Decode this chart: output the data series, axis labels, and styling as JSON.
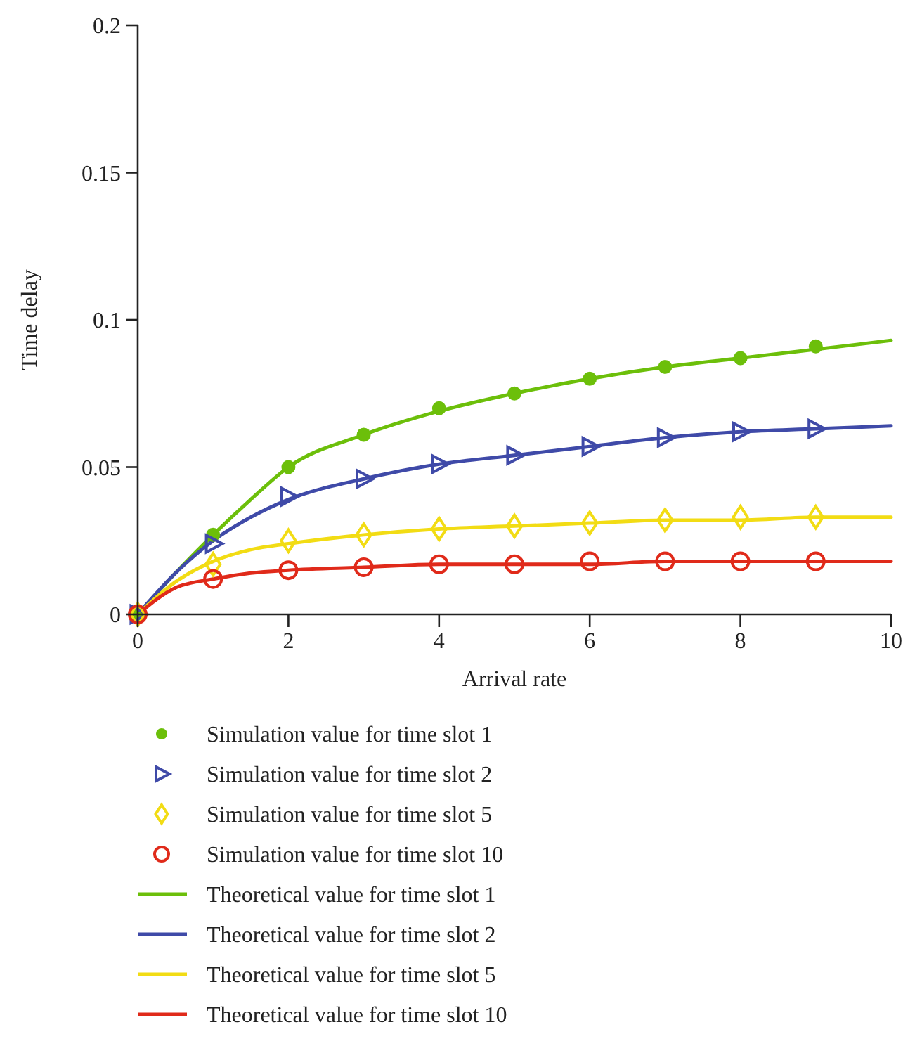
{
  "chart_data": {
    "type": "line",
    "xlabel": "Arrival rate",
    "ylabel": "Time delay",
    "xlim": [
      0,
      10
    ],
    "ylim": [
      0,
      0.2
    ],
    "xticks": [
      0,
      2,
      4,
      6,
      8,
      10
    ],
    "yticks": [
      0,
      0.05,
      0.1,
      0.15,
      0.2
    ],
    "grid": false,
    "legend": "bottom",
    "series": [
      {
        "name": "Simulation value for time slot 1",
        "type": "scatter",
        "marker": "circle",
        "color": "#6cbf0a",
        "x": [
          0,
          1,
          2,
          3,
          4,
          5,
          6,
          7,
          8,
          9
        ],
        "values": [
          0,
          0.027,
          0.05,
          0.061,
          0.07,
          0.075,
          0.08,
          0.084,
          0.087,
          0.091
        ]
      },
      {
        "name": "Simulation value for time slot 2",
        "type": "scatter",
        "marker": "triangle",
        "color": "#3f4aa8",
        "x": [
          0,
          1,
          2,
          3,
          4,
          5,
          6,
          7,
          8,
          9
        ],
        "values": [
          0,
          0.024,
          0.04,
          0.046,
          0.051,
          0.054,
          0.057,
          0.06,
          0.062,
          0.063
        ]
      },
      {
        "name": "Simulation value for time slot 5",
        "type": "scatter",
        "marker": "diamond",
        "color": "#f2dc14",
        "x": [
          0,
          1,
          2,
          3,
          4,
          5,
          6,
          7,
          8,
          9
        ],
        "values": [
          0,
          0.017,
          0.025,
          0.027,
          0.029,
          0.03,
          0.031,
          0.032,
          0.033,
          0.033
        ]
      },
      {
        "name": "Simulation value for time slot 10",
        "type": "scatter",
        "marker": "circle",
        "color": "#e02a1a",
        "x": [
          0,
          1,
          2,
          3,
          4,
          5,
          6,
          7,
          8,
          9
        ],
        "values": [
          0,
          0.012,
          0.015,
          0.016,
          0.017,
          0.017,
          0.018,
          0.018,
          0.018,
          0.018
        ]
      },
      {
        "name": "Theoretical value for time slot 1",
        "marker": "none",
        "color": "#6cbf0a",
        "x": [
          0,
          0.5,
          1,
          1.5,
          2,
          3,
          4,
          5,
          6,
          7,
          8,
          9,
          10
        ],
        "values": [
          0,
          0.014,
          0.027,
          0.039,
          0.05,
          0.061,
          0.069,
          0.075,
          0.08,
          0.084,
          0.087,
          0.09,
          0.093
        ]
      },
      {
        "name": "Theoretical value for time slot 2",
        "marker": "none",
        "color": "#3f4aa8",
        "x": [
          0,
          0.5,
          1,
          1.5,
          2,
          3,
          4,
          5,
          6,
          7,
          8,
          9,
          10
        ],
        "values": [
          0,
          0.014,
          0.025,
          0.033,
          0.039,
          0.046,
          0.051,
          0.054,
          0.057,
          0.06,
          0.062,
          0.063,
          0.064
        ]
      },
      {
        "name": "Theoretical value for time slot 5",
        "marker": "none",
        "color": "#f2dc14",
        "x": [
          0,
          0.5,
          1,
          1.5,
          2,
          3,
          4,
          5,
          6,
          7,
          8,
          9,
          10
        ],
        "values": [
          0,
          0.011,
          0.018,
          0.022,
          0.024,
          0.027,
          0.029,
          0.03,
          0.031,
          0.032,
          0.032,
          0.033,
          0.033
        ]
      },
      {
        "name": "Theoretical value for time slot 10",
        "marker": "none",
        "color": "#e02a1a",
        "x": [
          0,
          0.5,
          1,
          1.5,
          2,
          3,
          4,
          5,
          6,
          7,
          8,
          9,
          10
        ],
        "values": [
          0,
          0.009,
          0.012,
          0.014,
          0.015,
          0.016,
          0.017,
          0.017,
          0.017,
          0.018,
          0.018,
          0.018,
          0.018
        ]
      }
    ]
  }
}
